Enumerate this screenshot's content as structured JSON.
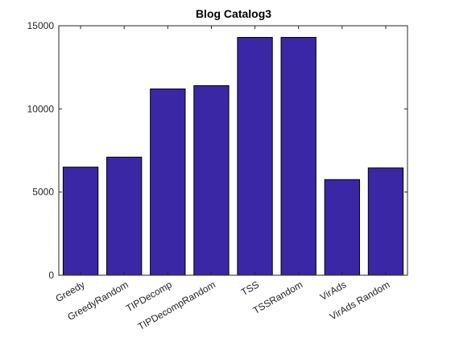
{
  "chart_data": {
    "type": "bar",
    "title": "Blog Catalog3",
    "xlabel": "",
    "ylabel": "",
    "categories": [
      "Greedy",
      "GreedyRandom",
      "TIPDecomp",
      "TIPDecompRandom",
      "TSS",
      "TSSRandom",
      "VirAds",
      "VirAds Random"
    ],
    "values": [
      6500,
      7100,
      11200,
      11400,
      14300,
      14300,
      5750,
      6450
    ],
    "ylim": [
      0,
      15000
    ],
    "yticks": [
      "0",
      "5000",
      "10000",
      "15000"
    ],
    "grid": false,
    "legend": "none",
    "colors": {
      "bar": "#3a27a6",
      "bar_edge": "#000000",
      "axis": "#262626"
    }
  }
}
